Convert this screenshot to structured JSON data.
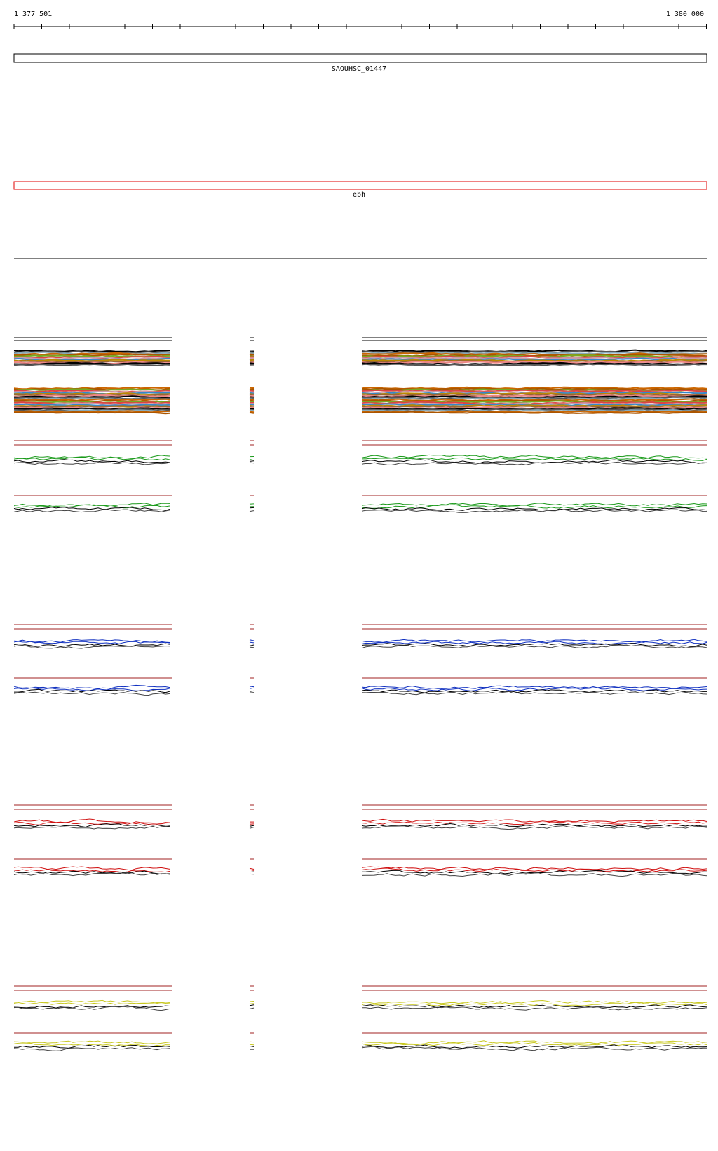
{
  "ruler": {
    "start_label": "1 377 501",
    "end_label": "1 380 000"
  },
  "features": [
    {
      "label": "SAOUHSC_01447"
    },
    {
      "label": "ebh"
    }
  ]
}
